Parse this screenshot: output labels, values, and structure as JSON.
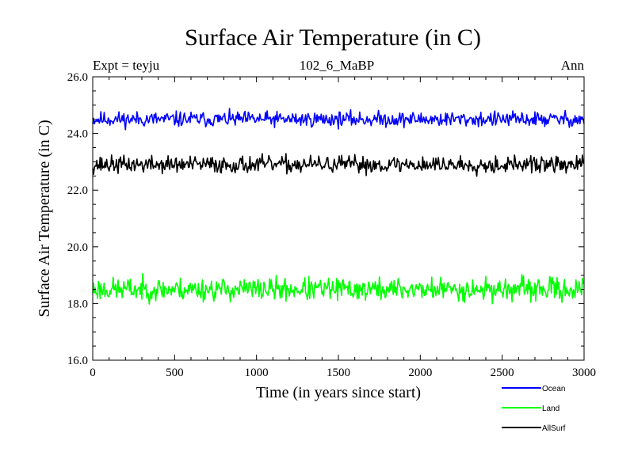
{
  "chart_data": {
    "type": "line",
    "title": "Surface Air Temperature (in C)",
    "subtitle": "102_6_MaBP",
    "left_label": "Expt = teyju",
    "right_label": "Ann",
    "xlabel": "Time (in years since start)",
    "ylabel": "Surface Air Temperature (in C)",
    "xlim": [
      0,
      3000
    ],
    "ylim": [
      16,
      26
    ],
    "xticks": [
      0,
      500,
      1000,
      1500,
      2000,
      2500,
      3000
    ],
    "xtick_labels": [
      "0",
      "500",
      "1000",
      "1500",
      "2000",
      "2500",
      "3000"
    ],
    "yticks": [
      16,
      18,
      20,
      22,
      24,
      26
    ],
    "ytick_labels": [
      "16.0",
      "18.0",
      "20.0",
      "22.0",
      "24.0",
      "26.0"
    ],
    "series": [
      {
        "name": "Ocean",
        "color": "#0000ff",
        "mean": 24.5,
        "amplitude": 0.4,
        "seed": 11
      },
      {
        "name": "Land",
        "color": "#00ff00",
        "mean": 18.5,
        "amplitude": 0.6,
        "seed": 23
      },
      {
        "name": "AllSurf",
        "color": "#000000",
        "mean": 22.9,
        "amplitude": 0.45,
        "seed": 37
      }
    ],
    "x_step": 5,
    "legend_position": "bottom-right"
  }
}
